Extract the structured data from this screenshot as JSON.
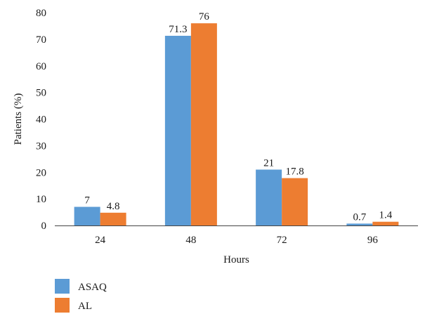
{
  "chart_data": {
    "type": "bar",
    "categories": [
      "24",
      "48",
      "72",
      "96"
    ],
    "series": [
      {
        "name": "ASAQ",
        "values": [
          7,
          71.3,
          21,
          0.7
        ],
        "labels": [
          "7",
          "71.3",
          "21",
          "0.7"
        ],
        "color": "#5b9bd5"
      },
      {
        "name": "AL",
        "values": [
          4.8,
          76,
          17.8,
          1.4
        ],
        "labels": [
          "4.8",
          "76",
          "17.8",
          "1.4"
        ],
        "color": "#ed7d31"
      }
    ],
    "xlabel": "Hours",
    "ylabel": "Patients (%)",
    "ylim": [
      0,
      80
    ],
    "yticks": [
      0,
      10,
      20,
      30,
      40,
      50,
      60,
      70,
      80
    ],
    "grid": false,
    "legend_position": "bottom-left"
  }
}
